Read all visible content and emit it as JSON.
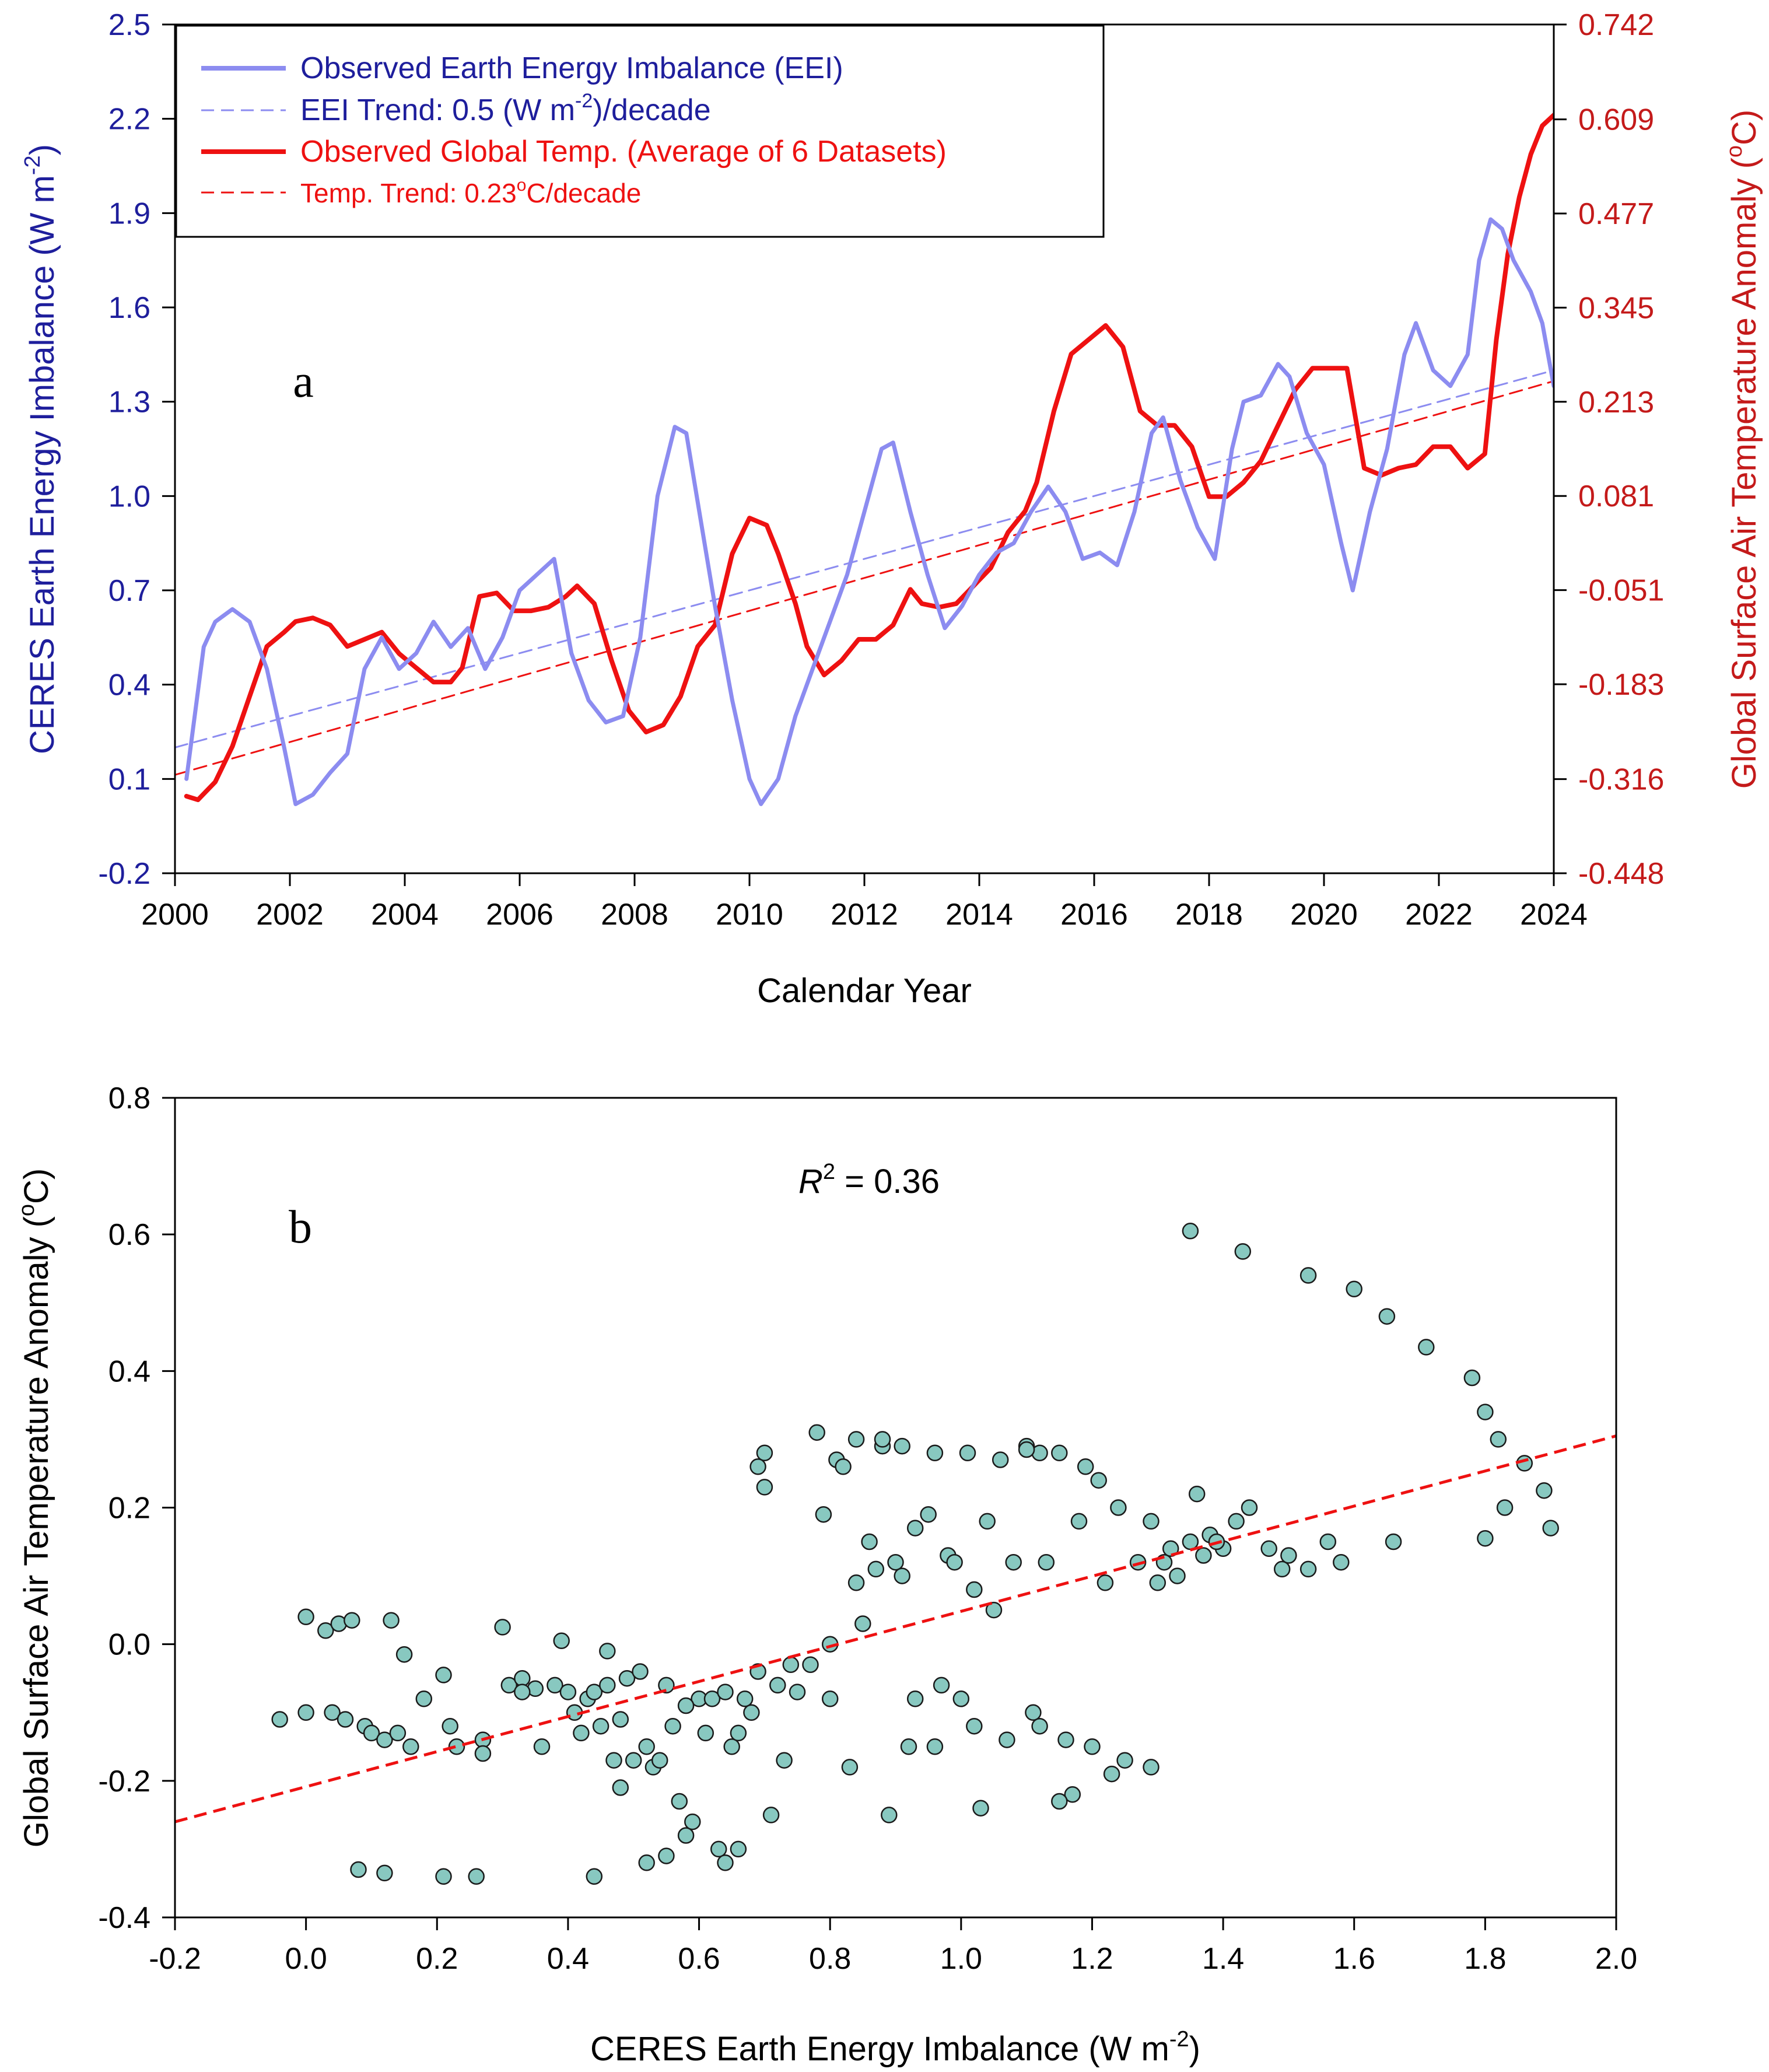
{
  "colors": {
    "eei": "#8c8cf0",
    "eei_label": "#1e1e9c",
    "temp": "#ee1111",
    "temp_label": "#c41a1a",
    "scatter_fill": "#88c8c0",
    "scatter_stroke": "#1a1a1a"
  },
  "chart_data": [
    {
      "type": "line",
      "panel_label": "a",
      "title": "",
      "xlabel": "Calendar Year",
      "ylabel_left": "CERES Earth Energy Imbalance (W m-2)",
      "ylabel_left_parts": {
        "main": "CERES Earth Energy Imbalance (W m",
        "sup": "-2",
        "end": ")"
      },
      "ylabel_right": "Global Surface Air Temperature Anomaly (°C)",
      "ylabel_right_parts": {
        "main": "Global Surface Air Temperature Anomaly (",
        "sup": "o",
        "end": "C)"
      },
      "xlim": [
        2000,
        2024
      ],
      "ylim_left": [
        -0.2,
        2.5
      ],
      "ylim_right": [
        -0.448,
        0.742
      ],
      "xticks": [
        "2000",
        "2002",
        "2004",
        "2006",
        "2008",
        "2010",
        "2012",
        "2014",
        "2016",
        "2018",
        "2020",
        "2022",
        "2024"
      ],
      "yticks_left": [
        "-0.2",
        "0.1",
        "0.4",
        "0.7",
        "1.0",
        "1.3",
        "1.6",
        "1.9",
        "2.2",
        "2.5"
      ],
      "yticks_right": [
        "-0.448",
        "-0.316",
        "-0.183",
        "-0.051",
        "0.081",
        "0.213",
        "0.345",
        "0.477",
        "0.609",
        "0.742"
      ],
      "legend_position": "top-left",
      "legend": [
        {
          "label": "Observed Earth Energy Imbalance (EEI)",
          "style": "solid",
          "color": "eei"
        },
        {
          "label_main": "EEI Trend: 0.5 (W m",
          "label_sup": "-2",
          "label_end": ")/decade",
          "style": "dashed",
          "color": "eei"
        },
        {
          "label": "Observed Global Temp. (Average of 6 Datasets)",
          "style": "solid",
          "color": "temp"
        },
        {
          "label_main": "Temp. Trend: 0.23",
          "label_sup": "o",
          "label_end": "C/decade",
          "style": "dashed",
          "color": "temp"
        }
      ],
      "series": [
        {
          "name": "Observed Earth Energy Imbalance (EEI)",
          "axis": "left",
          "x": [
            2000.2,
            2000.5,
            2000.7,
            2001.0,
            2001.3,
            2001.6,
            2001.9,
            2002.1,
            2002.4,
            2002.7,
            2003.0,
            2003.3,
            2003.6,
            2003.9,
            2004.2,
            2004.5,
            2004.8,
            2005.1,
            2005.4,
            2005.7,
            2006.0,
            2006.3,
            2006.6,
            2006.9,
            2007.2,
            2007.5,
            2007.8,
            2008.1,
            2008.4,
            2008.7,
            2008.9,
            2009.1,
            2009.4,
            2009.7,
            2010.0,
            2010.2,
            2010.5,
            2010.8,
            2011.1,
            2011.4,
            2011.7,
            2012.0,
            2012.3,
            2012.5,
            2012.8,
            2013.1,
            2013.4,
            2013.7,
            2014.0,
            2014.3,
            2014.6,
            2014.9,
            2015.2,
            2015.5,
            2015.8,
            2016.1,
            2016.4,
            2016.7,
            2017.0,
            2017.2,
            2017.5,
            2017.8,
            2018.1,
            2018.4,
            2018.6,
            2018.9,
            2019.2,
            2019.4,
            2019.7,
            2020.0,
            2020.3,
            2020.5,
            2020.8,
            2021.1,
            2021.4,
            2021.6,
            2021.9,
            2022.2,
            2022.5,
            2022.7,
            2022.9,
            2023.1,
            2023.3,
            2023.6,
            2023.8,
            2024.0
          ],
          "y": [
            0.1,
            0.52,
            0.6,
            0.64,
            0.6,
            0.45,
            0.2,
            0.02,
            0.05,
            0.12,
            0.18,
            0.45,
            0.55,
            0.45,
            0.5,
            0.6,
            0.52,
            0.58,
            0.45,
            0.55,
            0.7,
            0.75,
            0.8,
            0.5,
            0.35,
            0.28,
            0.3,
            0.55,
            1.0,
            1.22,
            1.2,
            0.98,
            0.65,
            0.35,
            0.1,
            0.02,
            0.1,
            0.3,
            0.45,
            0.6,
            0.75,
            0.95,
            1.15,
            1.17,
            0.95,
            0.75,
            0.58,
            0.65,
            0.75,
            0.82,
            0.85,
            0.95,
            1.03,
            0.95,
            0.8,
            0.82,
            0.78,
            0.95,
            1.2,
            1.25,
            1.05,
            0.9,
            0.8,
            1.15,
            1.3,
            1.32,
            1.42,
            1.38,
            1.2,
            1.1,
            0.85,
            0.7,
            0.95,
            1.15,
            1.45,
            1.55,
            1.4,
            1.35,
            1.45,
            1.75,
            1.88,
            1.85,
            1.75,
            1.65,
            1.55,
            1.35
          ]
        },
        {
          "name": "EEI Trend: 0.5 (W m-2)/decade",
          "axis": "left",
          "x": [
            2000,
            2024
          ],
          "y": [
            0.2,
            1.4
          ]
        },
        {
          "name": "Observed Global Temp. (Average of 6 Datasets)",
          "axis": "right",
          "x": [
            2000.2,
            2000.4,
            2000.7,
            2001.0,
            2001.3,
            2001.6,
            2001.9,
            2002.1,
            2002.4,
            2002.7,
            2003.0,
            2003.3,
            2003.6,
            2003.9,
            2004.2,
            2004.5,
            2004.8,
            2005.0,
            2005.3,
            2005.6,
            2005.9,
            2006.2,
            2006.5,
            2006.8,
            2007.0,
            2007.3,
            2007.6,
            2007.9,
            2008.2,
            2008.5,
            2008.8,
            2009.1,
            2009.4,
            2009.7,
            2010.0,
            2010.3,
            2010.5,
            2010.8,
            2011.0,
            2011.3,
            2011.6,
            2011.9,
            2012.2,
            2012.5,
            2012.8,
            2013.0,
            2013.3,
            2013.6,
            2013.9,
            2014.2,
            2014.5,
            2014.8,
            2015.0,
            2015.3,
            2015.6,
            2015.9,
            2016.2,
            2016.5,
            2016.8,
            2017.1,
            2017.4,
            2017.7,
            2018.0,
            2018.3,
            2018.6,
            2018.9,
            2019.2,
            2019.5,
            2019.8,
            2020.1,
            2020.4,
            2020.7,
            2021.0,
            2021.3,
            2021.6,
            2021.9,
            2022.2,
            2022.5,
            2022.8,
            2023.0,
            2023.2,
            2023.4,
            2023.6,
            2023.8,
            2024.0
          ],
          "y": [
            -0.34,
            -0.345,
            -0.32,
            -0.27,
            -0.2,
            -0.13,
            -0.11,
            -0.095,
            -0.09,
            -0.1,
            -0.13,
            -0.12,
            -0.11,
            -0.14,
            -0.16,
            -0.18,
            -0.18,
            -0.16,
            -0.06,
            -0.055,
            -0.08,
            -0.08,
            -0.075,
            -0.06,
            -0.045,
            -0.07,
            -0.15,
            -0.22,
            -0.25,
            -0.24,
            -0.2,
            -0.13,
            -0.1,
            0.0,
            0.05,
            0.04,
            0.0,
            -0.07,
            -0.13,
            -0.17,
            -0.15,
            -0.12,
            -0.12,
            -0.1,
            -0.05,
            -0.07,
            -0.075,
            -0.07,
            -0.045,
            -0.02,
            0.03,
            0.06,
            0.1,
            0.2,
            0.28,
            0.3,
            0.32,
            0.29,
            0.2,
            0.18,
            0.18,
            0.15,
            0.08,
            0.08,
            0.1,
            0.13,
            0.18,
            0.23,
            0.26,
            0.26,
            0.26,
            0.12,
            0.11,
            0.12,
            0.125,
            0.15,
            0.15,
            0.12,
            0.14,
            0.3,
            0.42,
            0.5,
            0.56,
            0.6,
            0.615
          ]
        },
        {
          "name": "Temp. Trend: 0.23°C/decade",
          "axis": "right",
          "x": [
            2000,
            2024
          ],
          "y": [
            -0.31,
            0.242
          ]
        }
      ]
    },
    {
      "type": "scatter",
      "panel_label": "b",
      "title": "",
      "xlabel": "CERES Earth Energy Imbalance (W m-2)",
      "xlabel_parts": {
        "main": "CERES Earth Energy Imbalance (W m",
        "sup": "-2",
        "end": ")"
      },
      "ylabel": "Global Surface Air Temperature Anomaly (°C)",
      "ylabel_parts": {
        "main": "Global Surface Air Temperature Anomaly (",
        "sup": "o",
        "end": "C)"
      },
      "annotation": {
        "main": "R",
        "sup": "2",
        "end": " = 0.36"
      },
      "xlim": [
        -0.2,
        2.0
      ],
      "ylim": [
        -0.4,
        0.8
      ],
      "xticks": [
        "-0.2",
        "0.0",
        "0.2",
        "0.4",
        "0.6",
        "0.8",
        "1.0",
        "1.2",
        "1.4",
        "1.6",
        "1.8",
        "2.0"
      ],
      "yticks": [
        "-0.4",
        "-0.2",
        "0.0",
        "0.2",
        "0.4",
        "0.6",
        "0.8"
      ],
      "trendline": {
        "x": [
          -0.2,
          2.0
        ],
        "y": [
          -0.26,
          0.305
        ]
      },
      "points": [
        [
          -0.04,
          -0.11
        ],
        [
          0.0,
          -0.1
        ],
        [
          0.0,
          0.04
        ],
        [
          0.03,
          0.02
        ],
        [
          0.04,
          -0.1
        ],
        [
          0.05,
          0.03
        ],
        [
          0.06,
          -0.11
        ],
        [
          0.07,
          0.035
        ],
        [
          0.09,
          -0.12
        ],
        [
          0.1,
          -0.13
        ],
        [
          0.12,
          -0.14
        ],
        [
          0.13,
          0.035
        ],
        [
          0.14,
          -0.13
        ],
        [
          0.15,
          -0.015
        ],
        [
          0.16,
          -0.15
        ],
        [
          0.18,
          -0.08
        ],
        [
          0.21,
          -0.045
        ],
        [
          0.22,
          -0.12
        ],
        [
          0.23,
          -0.15
        ],
        [
          0.27,
          -0.14
        ],
        [
          0.3,
          0.025
        ],
        [
          0.31,
          -0.06
        ],
        [
          0.33,
          -0.05
        ],
        [
          0.35,
          -0.065
        ],
        [
          0.36,
          -0.15
        ],
        [
          0.38,
          -0.06
        ],
        [
          0.39,
          0.005
        ],
        [
          0.4,
          -0.07
        ],
        [
          0.42,
          -0.13
        ],
        [
          0.43,
          -0.08
        ],
        [
          0.44,
          -0.07
        ],
        [
          0.45,
          -0.12
        ],
        [
          0.46,
          -0.01
        ],
        [
          0.47,
          -0.17
        ],
        [
          0.48,
          -0.11
        ],
        [
          0.49,
          -0.05
        ],
        [
          0.5,
          -0.17
        ],
        [
          0.51,
          -0.04
        ],
        [
          0.52,
          -0.15
        ],
        [
          0.53,
          -0.18
        ],
        [
          0.55,
          -0.06
        ],
        [
          0.56,
          -0.12
        ],
        [
          0.57,
          -0.23
        ],
        [
          0.58,
          -0.28
        ],
        [
          0.59,
          -0.26
        ],
        [
          0.6,
          -0.08
        ],
        [
          0.61,
          -0.13
        ],
        [
          0.62,
          -0.08
        ],
        [
          0.63,
          -0.3
        ],
        [
          0.64,
          -0.07
        ],
        [
          0.65,
          -0.15
        ],
        [
          0.66,
          -0.3
        ],
        [
          0.67,
          -0.08
        ],
        [
          0.68,
          -0.1
        ],
        [
          0.69,
          -0.04
        ],
        [
          0.7,
          0.28
        ],
        [
          0.71,
          -0.25
        ],
        [
          0.72,
          -0.06
        ],
        [
          0.73,
          -0.17
        ],
        [
          0.74,
          -0.03
        ],
        [
          0.75,
          -0.07
        ],
        [
          0.77,
          -0.03
        ],
        [
          0.78,
          0.31
        ],
        [
          0.79,
          0.19
        ],
        [
          0.8,
          -0.08
        ],
        [
          0.81,
          0.27
        ],
        [
          0.82,
          0.26
        ],
        [
          0.83,
          -0.18
        ],
        [
          0.84,
          0.3
        ],
        [
          0.85,
          0.03
        ],
        [
          0.86,
          0.15
        ],
        [
          0.87,
          0.11
        ],
        [
          0.88,
          0.29
        ],
        [
          0.89,
          -0.25
        ],
        [
          0.9,
          0.12
        ],
        [
          0.91,
          0.1
        ],
        [
          0.92,
          -0.15
        ],
        [
          0.93,
          0.17
        ],
        [
          0.95,
          0.19
        ],
        [
          0.96,
          0.28
        ],
        [
          0.98,
          0.13
        ],
        [
          0.99,
          0.12
        ],
        [
          1.0,
          -0.08
        ],
        [
          1.01,
          0.28
        ],
        [
          1.02,
          0.08
        ],
        [
          1.03,
          -0.24
        ],
        [
          1.04,
          0.18
        ],
        [
          1.06,
          0.27
        ],
        [
          1.08,
          0.12
        ],
        [
          1.1,
          0.29
        ],
        [
          1.11,
          -0.1
        ],
        [
          1.12,
          0.28
        ],
        [
          1.13,
          0.12
        ],
        [
          1.15,
          0.28
        ],
        [
          1.16,
          -0.14
        ],
        [
          1.17,
          -0.22
        ],
        [
          1.18,
          0.18
        ],
        [
          1.19,
          0.26
        ],
        [
          1.2,
          -0.15
        ],
        [
          1.22,
          0.09
        ],
        [
          1.24,
          0.2
        ],
        [
          1.25,
          -0.17
        ],
        [
          1.27,
          0.12
        ],
        [
          1.29,
          0.18
        ],
        [
          1.3,
          0.09
        ],
        [
          1.31,
          0.12
        ],
        [
          1.33,
          0.1
        ],
        [
          1.35,
          0.15
        ],
        [
          1.36,
          0.22
        ],
        [
          1.38,
          0.16
        ],
        [
          1.4,
          0.14
        ],
        [
          1.42,
          0.18
        ],
        [
          1.44,
          0.2
        ],
        [
          1.47,
          0.14
        ],
        [
          1.49,
          0.11
        ],
        [
          1.5,
          0.13
        ],
        [
          1.53,
          0.11
        ],
        [
          1.56,
          0.15
        ],
        [
          1.58,
          0.12
        ],
        [
          1.66,
          0.15
        ],
        [
          1.35,
          0.605
        ],
        [
          1.43,
          0.575
        ],
        [
          1.53,
          0.54
        ],
        [
          1.6,
          0.52
        ],
        [
          1.65,
          0.48
        ],
        [
          1.71,
          0.435
        ],
        [
          1.78,
          0.39
        ],
        [
          1.8,
          0.34
        ],
        [
          1.82,
          0.3
        ],
        [
          1.86,
          0.265
        ],
        [
          1.83,
          0.2
        ],
        [
          1.8,
          0.155
        ],
        [
          1.89,
          0.225
        ],
        [
          1.9,
          0.17
        ],
        [
          0.08,
          -0.33
        ],
        [
          0.12,
          -0.335
        ],
        [
          0.21,
          -0.34
        ],
        [
          0.26,
          -0.34
        ],
        [
          0.44,
          -0.34
        ],
        [
          0.52,
          -0.32
        ],
        [
          0.55,
          -0.31
        ],
        [
          0.64,
          -0.32
        ],
        [
          0.27,
          -0.16
        ],
        [
          0.33,
          -0.07
        ],
        [
          0.41,
          -0.1
        ],
        [
          0.46,
          -0.06
        ],
        [
          0.48,
          -0.21
        ],
        [
          0.54,
          -0.17
        ],
        [
          0.58,
          -0.09
        ],
        [
          0.66,
          -0.13
        ],
        [
          0.8,
          0.0
        ],
        [
          0.84,
          0.09
        ],
        [
          0.93,
          -0.08
        ],
        [
          0.97,
          -0.06
        ],
        [
          1.02,
          -0.12
        ],
        [
          1.07,
          -0.14
        ],
        [
          1.12,
          -0.12
        ],
        [
          1.23,
          -0.19
        ],
        [
          1.29,
          -0.18
        ],
        [
          0.69,
          0.26
        ],
        [
          0.7,
          0.23
        ],
        [
          0.88,
          0.3
        ],
        [
          0.91,
          0.29
        ],
        [
          0.96,
          -0.15
        ],
        [
          1.05,
          0.05
        ],
        [
          1.1,
          0.285
        ],
        [
          1.15,
          -0.23
        ],
        [
          1.21,
          0.24
        ],
        [
          1.32,
          0.14
        ],
        [
          1.37,
          0.13
        ],
        [
          1.39,
          0.15
        ]
      ]
    }
  ]
}
